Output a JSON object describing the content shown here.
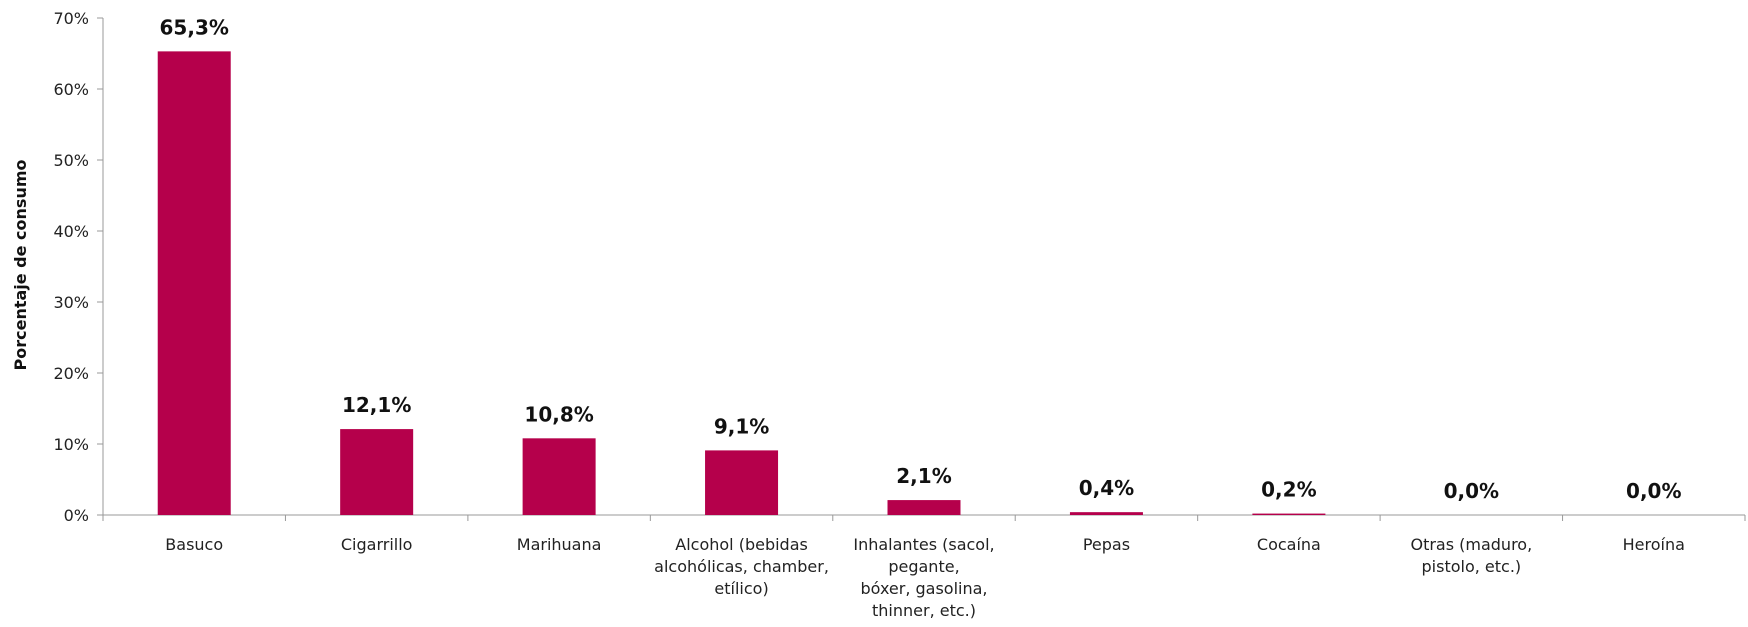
{
  "chart_data": {
    "type": "bar",
    "ylabel": "Porcentaje de consumo",
    "ylim": [
      0,
      70
    ],
    "yticks": [
      0,
      10,
      20,
      30,
      40,
      50,
      60,
      70
    ],
    "ytick_labels": [
      "0%",
      "10%",
      "20%",
      "30%",
      "40%",
      "50%",
      "60%",
      "70%"
    ],
    "categories": [
      [
        "Basuco"
      ],
      [
        "Cigarrillo"
      ],
      [
        "Marihuana"
      ],
      [
        "Alcohol (bebidas",
        "alcohólicas, chamber,",
        "etílico)"
      ],
      [
        "Inhalantes (sacol,",
        "pegante,",
        "bóxer, gasolina,",
        "thinner, etc.)"
      ],
      [
        "Pepas"
      ],
      [
        "Cocaína"
      ],
      [
        "Otras (maduro,",
        "pistolo, etc.)"
      ],
      [
        "Heroína"
      ]
    ],
    "values": [
      65.3,
      12.1,
      10.8,
      9.1,
      2.1,
      0.4,
      0.2,
      0.0,
      0.0
    ],
    "value_labels": [
      "65,3%",
      "12,1%",
      "10,8%",
      "9,1%",
      "2,1%",
      "0,4%",
      "0,2%",
      "0,0%",
      "0,0%"
    ],
    "bar_color": "#B5004B",
    "axis_color": "#999999",
    "grid": false,
    "legend": "none"
  }
}
